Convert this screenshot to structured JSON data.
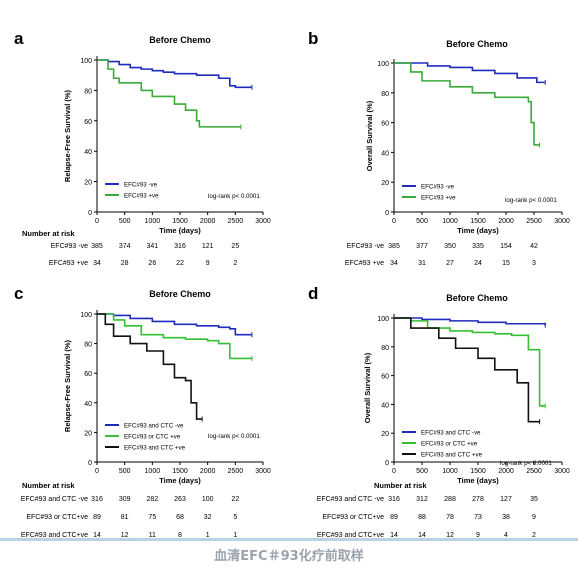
{
  "caption": "血清EFC＃93化疗前取样",
  "colors": {
    "negative": "#1f2bbf",
    "positive": "#3aaa3a",
    "mixed": "#33c033",
    "double_positive": "#111111"
  },
  "chart_data": [
    {
      "panel_letter": "a",
      "type": "line",
      "title": "Before Chemo",
      "xlabel": "Time (days)",
      "ylabel": "Relapse-Free Survival (%)",
      "xlim": [
        0,
        3000
      ],
      "ylim": [
        0,
        100
      ],
      "xticks": [
        0,
        500,
        1000,
        1500,
        2000,
        2500,
        3000
      ],
      "yticks": [
        0,
        20,
        40,
        60,
        80,
        100
      ],
      "legend_position": "bottom-left",
      "annotation": "log-rank p< 0.0001",
      "series": [
        {
          "name": "EFC#93 -ve",
          "color": "#1f2bbf",
          "x": [
            0,
            200,
            400,
            600,
            800,
            1000,
            1200,
            1400,
            1600,
            1800,
            2000,
            2200,
            2400,
            2500,
            2600,
            2800
          ],
          "y": [
            100,
            99,
            97,
            95,
            94,
            93,
            92,
            91,
            91,
            90,
            90,
            88,
            83,
            82,
            82,
            82
          ]
        },
        {
          "name": "EFC#93 +ve",
          "color": "#3aaa3a",
          "x": [
            0,
            200,
            300,
            400,
            800,
            1000,
            1400,
            1600,
            1800,
            1850,
            2100,
            2600
          ],
          "y": [
            100,
            94,
            88,
            85,
            80,
            76,
            71,
            67,
            60,
            56,
            56,
            56
          ]
        }
      ],
      "risk_table": {
        "header": "Number at risk",
        "times": [
          0,
          500,
          1000,
          1500,
          2000,
          2500
        ],
        "rows": [
          {
            "label": "EFC#93 -ve",
            "values": [
              "385",
              "374",
              "341",
              "316",
              "121",
              "25"
            ]
          },
          {
            "label": "EFC#93 +ve",
            "values": [
              "34",
              "28",
              "26",
              "22",
              "9",
              "2"
            ]
          }
        ]
      }
    },
    {
      "panel_letter": "b",
      "type": "line",
      "title": "Before Chemo",
      "xlabel": "Time (days)",
      "ylabel": "Overall Survival (%)",
      "xlim": [
        0,
        3000
      ],
      "ylim": [
        0,
        100
      ],
      "xticks": [
        0,
        500,
        1000,
        1500,
        2000,
        2500,
        3000
      ],
      "yticks": [
        0,
        20,
        40,
        60,
        80,
        100
      ],
      "legend_position": "bottom-left",
      "annotation": "log-rank p< 0.0001",
      "series": [
        {
          "name": "EFC#93 -ve",
          "color": "#1f2bbf",
          "x": [
            0,
            300,
            600,
            1000,
            1400,
            1800,
            2200,
            2500,
            2550,
            2700
          ],
          "y": [
            100,
            100,
            98,
            97,
            95,
            93,
            90,
            90,
            87,
            87
          ]
        },
        {
          "name": "EFC#93 +ve",
          "color": "#3aaa3a",
          "x": [
            0,
            300,
            500,
            1000,
            1400,
            1800,
            2400,
            2450,
            2500,
            2600
          ],
          "y": [
            100,
            94,
            88,
            84,
            80,
            77,
            74,
            60,
            45,
            45
          ]
        }
      ],
      "risk_table": {
        "header": "",
        "times": [
          0,
          500,
          1000,
          1500,
          2000,
          2500
        ],
        "rows": [
          {
            "label": "EFC#93 -ve",
            "values": [
              "385",
              "377",
              "350",
              "335",
              "154",
              "42"
            ]
          },
          {
            "label": "EFC#93 +ve",
            "values": [
              "34",
              "31",
              "27",
              "24",
              "15",
              "3"
            ]
          }
        ]
      }
    },
    {
      "panel_letter": "c",
      "type": "line",
      "title": "Before Chemo",
      "xlabel": "Time (days)",
      "ylabel": "Relapse-Free Survival (%)",
      "xlim": [
        0,
        3000
      ],
      "ylim": [
        0,
        100
      ],
      "xticks": [
        0,
        500,
        1000,
        1500,
        2000,
        2500,
        3000
      ],
      "yticks": [
        0,
        20,
        40,
        60,
        80,
        100
      ],
      "legend_position": "bottom-left",
      "annotation": "log-rank p< 0.0001",
      "series": [
        {
          "name": "EFC#93 and CTC -ve",
          "color": "#1f2bbf",
          "x": [
            0,
            300,
            600,
            1000,
            1400,
            1800,
            2200,
            2400,
            2500,
            2800
          ],
          "y": [
            100,
            99,
            97,
            95,
            93,
            92,
            91,
            90,
            86,
            86
          ]
        },
        {
          "name": "EFC#93 or CTC +ve",
          "color": "#33c033",
          "x": [
            0,
            300,
            500,
            800,
            1200,
            1600,
            2000,
            2200,
            2400,
            2800
          ],
          "y": [
            100,
            96,
            92,
            86,
            84,
            83,
            82,
            80,
            70,
            70
          ]
        },
        {
          "name": "EFC#93 and CTC +ve",
          "color": "#111111",
          "x": [
            0,
            150,
            300,
            600,
            900,
            1200,
            1400,
            1600,
            1700,
            1800,
            1900
          ],
          "y": [
            100,
            93,
            85,
            80,
            75,
            66,
            57,
            55,
            40,
            29,
            29
          ]
        }
      ],
      "risk_table": {
        "header": "Number at risk",
        "times": [
          0,
          500,
          1000,
          1500,
          2000,
          2500
        ],
        "rows": [
          {
            "label": "EFC#93 and CTC -ve",
            "values": [
              "316",
              "309",
              "282",
              "263",
              "100",
              "22"
            ]
          },
          {
            "label": "EFC#93 or CTC+ve",
            "values": [
              "89",
              "81",
              "75",
              "68",
              "32",
              "5"
            ]
          },
          {
            "label": "EFC#93 and CTC+ve",
            "values": [
              "14",
              "12",
              "11",
              "8",
              "1",
              "1"
            ]
          }
        ]
      }
    },
    {
      "panel_letter": "d",
      "type": "line",
      "title": "Before Chemo",
      "xlabel": "Time (days)",
      "ylabel": "Overall Survival (%)",
      "xlim": [
        0,
        3000
      ],
      "ylim": [
        0,
        100
      ],
      "xticks": [
        0,
        500,
        1000,
        1500,
        2000,
        2500,
        3000
      ],
      "yticks": [
        0,
        20,
        40,
        60,
        80,
        100
      ],
      "legend_position": "bottom-left",
      "annotation": "log-rank p< 0.0001",
      "series": [
        {
          "name": "EFC#93 and CTC -ve",
          "color": "#1f2bbf",
          "x": [
            0,
            500,
            1000,
            1500,
            2000,
            2500,
            2700
          ],
          "y": [
            100,
            99,
            98,
            97,
            96,
            96,
            95
          ]
        },
        {
          "name": "EFC#93 or CTC +ve",
          "color": "#33c033",
          "x": [
            0,
            300,
            600,
            1000,
            1400,
            1800,
            2100,
            2400,
            2600,
            2700
          ],
          "y": [
            100,
            98,
            93,
            91,
            90,
            89,
            88,
            78,
            39,
            39
          ]
        },
        {
          "name": "EFC#93 and CTC +ve",
          "color": "#111111",
          "x": [
            0,
            300,
            800,
            1100,
            1500,
            1800,
            2200,
            2400,
            2500,
            2600
          ],
          "y": [
            100,
            93,
            86,
            79,
            72,
            64,
            55,
            28,
            28,
            28
          ]
        }
      ],
      "risk_table": {
        "header": "Number at risk",
        "times": [
          0,
          500,
          1000,
          1500,
          2000,
          2500
        ],
        "rows": [
          {
            "label": "EFC#93 and CTC -ve",
            "values": [
              "316",
              "312",
              "288",
              "278",
              "127",
              "35"
            ]
          },
          {
            "label": "EFC#93 or CTC+ve",
            "values": [
              "89",
              "88",
              "78",
              "73",
              "38",
              "9"
            ]
          },
          {
            "label": "EFC#93 and CTC+ve",
            "values": [
              "14",
              "14",
              "12",
              "9",
              "4",
              "2"
            ]
          }
        ]
      }
    }
  ]
}
